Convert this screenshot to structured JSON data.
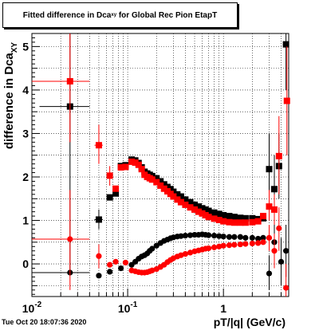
{
  "title": {
    "prefix": "Fitted difference in Dca",
    "subscript": "xy",
    "suffix": "for Global Rec Pion EtapT"
  },
  "date_stamp": "Tue Oct 20 18:07:36 2020",
  "chart_data": {
    "type": "scatter",
    "title": "Fitted difference in Dca_xy for Global Rec Pion EtapT",
    "xlabel": "pT/|q| (GeV/c)",
    "ylabel": "difference in Dca",
    "ylabel_subscript": "XY",
    "xscale": "log",
    "xlim": [
      0.01,
      4.8
    ],
    "ylim": [
      -0.75,
      5.3
    ],
    "grid": true,
    "x_tick_labels": [
      {
        "value": 0.01,
        "mantissa": "10",
        "exponent": "-2"
      },
      {
        "value": 0.1,
        "mantissa": "10",
        "exponent": "-1"
      },
      {
        "value": 1,
        "mantissa": "1",
        "exponent": ""
      }
    ],
    "y_ticks": [
      0,
      1,
      2,
      3,
      4,
      5
    ],
    "colors": {
      "black": "#000000",
      "red": "#ff0000"
    },
    "series": [
      {
        "color": "#000000",
        "marker": "square",
        "points": [
          {
            "x": 0.025,
            "y": 3.62,
            "ylo": -0.2,
            "yhi": 5.3,
            "xlo": 0.012,
            "xhi": 0.04
          },
          {
            "x": 0.05,
            "y": 1.02,
            "ylo": 0.8,
            "yhi": 1.25,
            "xlo": 0.045,
            "xhi": 0.055
          },
          {
            "x": 0.065,
            "y": 1.53
          },
          {
            "x": 0.075,
            "y": 1.62
          },
          {
            "x": 0.085,
            "y": 2.25
          },
          {
            "x": 0.095,
            "y": 2.27
          },
          {
            "x": 0.11,
            "y": 2.4
          },
          {
            "x": 0.12,
            "y": 2.38
          },
          {
            "x": 0.13,
            "y": 2.32
          },
          {
            "x": 0.14,
            "y": 2.22
          },
          {
            "x": 0.15,
            "y": 2.12
          },
          {
            "x": 0.16,
            "y": 2.08
          },
          {
            "x": 0.17,
            "y": 2.05
          },
          {
            "x": 0.18,
            "y": 2.02
          },
          {
            "x": 0.2,
            "y": 1.97
          },
          {
            "x": 0.22,
            "y": 1.9
          },
          {
            "x": 0.24,
            "y": 1.83
          },
          {
            "x": 0.26,
            "y": 1.77
          },
          {
            "x": 0.28,
            "y": 1.72
          },
          {
            "x": 0.3,
            "y": 1.66
          },
          {
            "x": 0.33,
            "y": 1.6
          },
          {
            "x": 0.36,
            "y": 1.55
          },
          {
            "x": 0.4,
            "y": 1.48
          },
          {
            "x": 0.45,
            "y": 1.42
          },
          {
            "x": 0.5,
            "y": 1.36
          },
          {
            "x": 0.55,
            "y": 1.32
          },
          {
            "x": 0.6,
            "y": 1.28
          },
          {
            "x": 0.65,
            "y": 1.25
          },
          {
            "x": 0.7,
            "y": 1.22
          },
          {
            "x": 0.8,
            "y": 1.18
          },
          {
            "x": 0.9,
            "y": 1.15
          },
          {
            "x": 1.0,
            "y": 1.12
          },
          {
            "x": 1.15,
            "y": 1.1
          },
          {
            "x": 1.3,
            "y": 1.08
          },
          {
            "x": 1.5,
            "y": 1.06
          },
          {
            "x": 1.7,
            "y": 1.05
          },
          {
            "x": 2.0,
            "y": 1.05
          },
          {
            "x": 2.3,
            "y": 1.03
          },
          {
            "x": 2.6,
            "y": 1.05
          },
          {
            "x": 3.0,
            "y": 2.18,
            "ylo": 1.5,
            "yhi": 3.0
          },
          {
            "x": 3.4,
            "y": 1.72,
            "ylo": 1.0,
            "yhi": 2.5
          },
          {
            "x": 3.8,
            "y": 2.25,
            "ylo": 1.5,
            "yhi": 3.0
          },
          {
            "x": 4.5,
            "y": 5.05,
            "ylo": 4.0,
            "yhi": 5.3
          }
        ]
      },
      {
        "color": "#000000",
        "marker": "circle",
        "points": [
          {
            "x": 0.025,
            "y": -0.2,
            "xlo": 0.01,
            "xhi": 0.04
          },
          {
            "x": 0.05,
            "y": -0.27
          },
          {
            "x": 0.065,
            "y": -0.18
          },
          {
            "x": 0.085,
            "y": -0.1
          },
          {
            "x": 0.11,
            "y": -0.02
          },
          {
            "x": 0.12,
            "y": 0.05
          },
          {
            "x": 0.13,
            "y": 0.12
          },
          {
            "x": 0.14,
            "y": 0.17
          },
          {
            "x": 0.15,
            "y": 0.2
          },
          {
            "x": 0.16,
            "y": 0.24
          },
          {
            "x": 0.17,
            "y": 0.3
          },
          {
            "x": 0.18,
            "y": 0.35
          },
          {
            "x": 0.2,
            "y": 0.42
          },
          {
            "x": 0.22,
            "y": 0.48
          },
          {
            "x": 0.24,
            "y": 0.53
          },
          {
            "x": 0.26,
            "y": 0.56
          },
          {
            "x": 0.28,
            "y": 0.59
          },
          {
            "x": 0.3,
            "y": 0.61
          },
          {
            "x": 0.33,
            "y": 0.63
          },
          {
            "x": 0.36,
            "y": 0.64
          },
          {
            "x": 0.4,
            "y": 0.65
          },
          {
            "x": 0.45,
            "y": 0.66
          },
          {
            "x": 0.5,
            "y": 0.67
          },
          {
            "x": 0.55,
            "y": 0.67
          },
          {
            "x": 0.6,
            "y": 0.68
          },
          {
            "x": 0.65,
            "y": 0.67
          },
          {
            "x": 0.7,
            "y": 0.66
          },
          {
            "x": 0.8,
            "y": 0.65
          },
          {
            "x": 0.9,
            "y": 0.64
          },
          {
            "x": 1.0,
            "y": 0.63
          },
          {
            "x": 1.15,
            "y": 0.62
          },
          {
            "x": 1.3,
            "y": 0.62
          },
          {
            "x": 1.5,
            "y": 0.62
          },
          {
            "x": 1.7,
            "y": 0.6
          },
          {
            "x": 2.0,
            "y": 0.6
          },
          {
            "x": 2.3,
            "y": 0.58
          },
          {
            "x": 2.6,
            "y": 0.6
          },
          {
            "x": 3.0,
            "y": -0.22,
            "ylo": -0.6,
            "yhi": 0.2
          },
          {
            "x": 3.4,
            "y": 0.5,
            "ylo": 0.1,
            "yhi": 0.9
          },
          {
            "x": 4.0,
            "y": 0.05,
            "ylo": -0.5,
            "yhi": 0.6
          },
          {
            "x": 4.5,
            "y": 0.3,
            "ylo": -0.3,
            "yhi": 0.9
          }
        ]
      },
      {
        "color": "#ff0000",
        "marker": "square",
        "points": [
          {
            "x": 0.025,
            "y": 4.2,
            "ylo": 2.8,
            "yhi": 5.3,
            "xlo": 0.01,
            "xhi": 0.04
          },
          {
            "x": 0.05,
            "y": 2.73,
            "ylo": 2.3,
            "yhi": 3.2,
            "xlo": 0.045,
            "xhi": 0.055
          },
          {
            "x": 0.065,
            "y": 2.03,
            "ylo": 1.8,
            "yhi": 2.25
          },
          {
            "x": 0.075,
            "y": 1.73
          },
          {
            "x": 0.085,
            "y": 2.22
          },
          {
            "x": 0.095,
            "y": 2.23
          },
          {
            "x": 0.11,
            "y": 2.35
          },
          {
            "x": 0.12,
            "y": 2.33
          },
          {
            "x": 0.13,
            "y": 2.28
          },
          {
            "x": 0.14,
            "y": 2.18
          },
          {
            "x": 0.15,
            "y": 2.05
          },
          {
            "x": 0.16,
            "y": 2.0
          },
          {
            "x": 0.17,
            "y": 1.97
          },
          {
            "x": 0.18,
            "y": 1.94
          },
          {
            "x": 0.2,
            "y": 1.88
          },
          {
            "x": 0.22,
            "y": 1.8
          },
          {
            "x": 0.24,
            "y": 1.73
          },
          {
            "x": 0.26,
            "y": 1.67
          },
          {
            "x": 0.28,
            "y": 1.61
          },
          {
            "x": 0.3,
            "y": 1.55
          },
          {
            "x": 0.33,
            "y": 1.48
          },
          {
            "x": 0.36,
            "y": 1.42
          },
          {
            "x": 0.4,
            "y": 1.36
          },
          {
            "x": 0.45,
            "y": 1.3
          },
          {
            "x": 0.5,
            "y": 1.25
          },
          {
            "x": 0.55,
            "y": 1.2
          },
          {
            "x": 0.6,
            "y": 1.16
          },
          {
            "x": 0.65,
            "y": 1.12
          },
          {
            "x": 0.7,
            "y": 1.08
          },
          {
            "x": 0.8,
            "y": 1.04
          },
          {
            "x": 0.9,
            "y": 1.01
          },
          {
            "x": 1.0,
            "y": 0.98
          },
          {
            "x": 1.15,
            "y": 0.96
          },
          {
            "x": 1.3,
            "y": 0.95
          },
          {
            "x": 1.5,
            "y": 0.95
          },
          {
            "x": 1.7,
            "y": 0.95
          },
          {
            "x": 2.0,
            "y": 0.96
          },
          {
            "x": 2.3,
            "y": 0.98
          },
          {
            "x": 2.6,
            "y": 1.1
          },
          {
            "x": 3.0,
            "y": 1.32,
            "ylo": 1.0,
            "yhi": 1.7
          },
          {
            "x": 3.4,
            "y": 1.25,
            "ylo": 0.9,
            "yhi": 1.6
          },
          {
            "x": 3.8,
            "y": 2.48,
            "ylo": 1.6,
            "yhi": 3.4
          },
          {
            "x": 4.6,
            "y": 3.75,
            "ylo": 2.5,
            "yhi": 5.0
          }
        ]
      },
      {
        "color": "#ff0000",
        "marker": "circle",
        "points": [
          {
            "x": 0.025,
            "y": 0.57,
            "ylo": -0.6,
            "yhi": 1.7,
            "xlo": 0.01,
            "xhi": 0.04
          },
          {
            "x": 0.05,
            "y": 0.18,
            "ylo": -0.1,
            "yhi": 0.45
          },
          {
            "x": 0.065,
            "y": -0.02
          },
          {
            "x": 0.075,
            "y": 0.05
          },
          {
            "x": 0.095,
            "y": 0.03
          },
          {
            "x": 0.11,
            "y": -0.15
          },
          {
            "x": 0.12,
            "y": -0.17
          },
          {
            "x": 0.13,
            "y": -0.19
          },
          {
            "x": 0.14,
            "y": -0.2
          },
          {
            "x": 0.15,
            "y": -0.2
          },
          {
            "x": 0.16,
            "y": -0.19
          },
          {
            "x": 0.17,
            "y": -0.17
          },
          {
            "x": 0.18,
            "y": -0.15
          },
          {
            "x": 0.2,
            "y": -0.12
          },
          {
            "x": 0.22,
            "y": -0.07
          },
          {
            "x": 0.24,
            "y": -0.02
          },
          {
            "x": 0.26,
            "y": 0.04
          },
          {
            "x": 0.28,
            "y": 0.09
          },
          {
            "x": 0.3,
            "y": 0.13
          },
          {
            "x": 0.33,
            "y": 0.17
          },
          {
            "x": 0.36,
            "y": 0.2
          },
          {
            "x": 0.4,
            "y": 0.23
          },
          {
            "x": 0.45,
            "y": 0.26
          },
          {
            "x": 0.5,
            "y": 0.29
          },
          {
            "x": 0.55,
            "y": 0.31
          },
          {
            "x": 0.6,
            "y": 0.33
          },
          {
            "x": 0.65,
            "y": 0.35
          },
          {
            "x": 0.7,
            "y": 0.36
          },
          {
            "x": 0.8,
            "y": 0.38
          },
          {
            "x": 0.9,
            "y": 0.4
          },
          {
            "x": 1.0,
            "y": 0.42
          },
          {
            "x": 1.15,
            "y": 0.43
          },
          {
            "x": 1.3,
            "y": 0.44
          },
          {
            "x": 1.5,
            "y": 0.45
          },
          {
            "x": 1.7,
            "y": 0.46
          },
          {
            "x": 2.0,
            "y": 0.47
          },
          {
            "x": 2.3,
            "y": 0.48
          },
          {
            "x": 2.6,
            "y": 0.5
          },
          {
            "x": 3.0,
            "y": 0.6,
            "ylo": 0.3,
            "yhi": 0.9
          },
          {
            "x": 3.4,
            "y": 0.3,
            "ylo": -0.1,
            "yhi": 0.7
          },
          {
            "x": 3.8,
            "y": 0.82,
            "ylo": 0.3,
            "yhi": 1.3
          },
          {
            "x": 4.5,
            "y": -0.55,
            "ylo": -0.75,
            "yhi": 0.0
          }
        ]
      }
    ]
  }
}
